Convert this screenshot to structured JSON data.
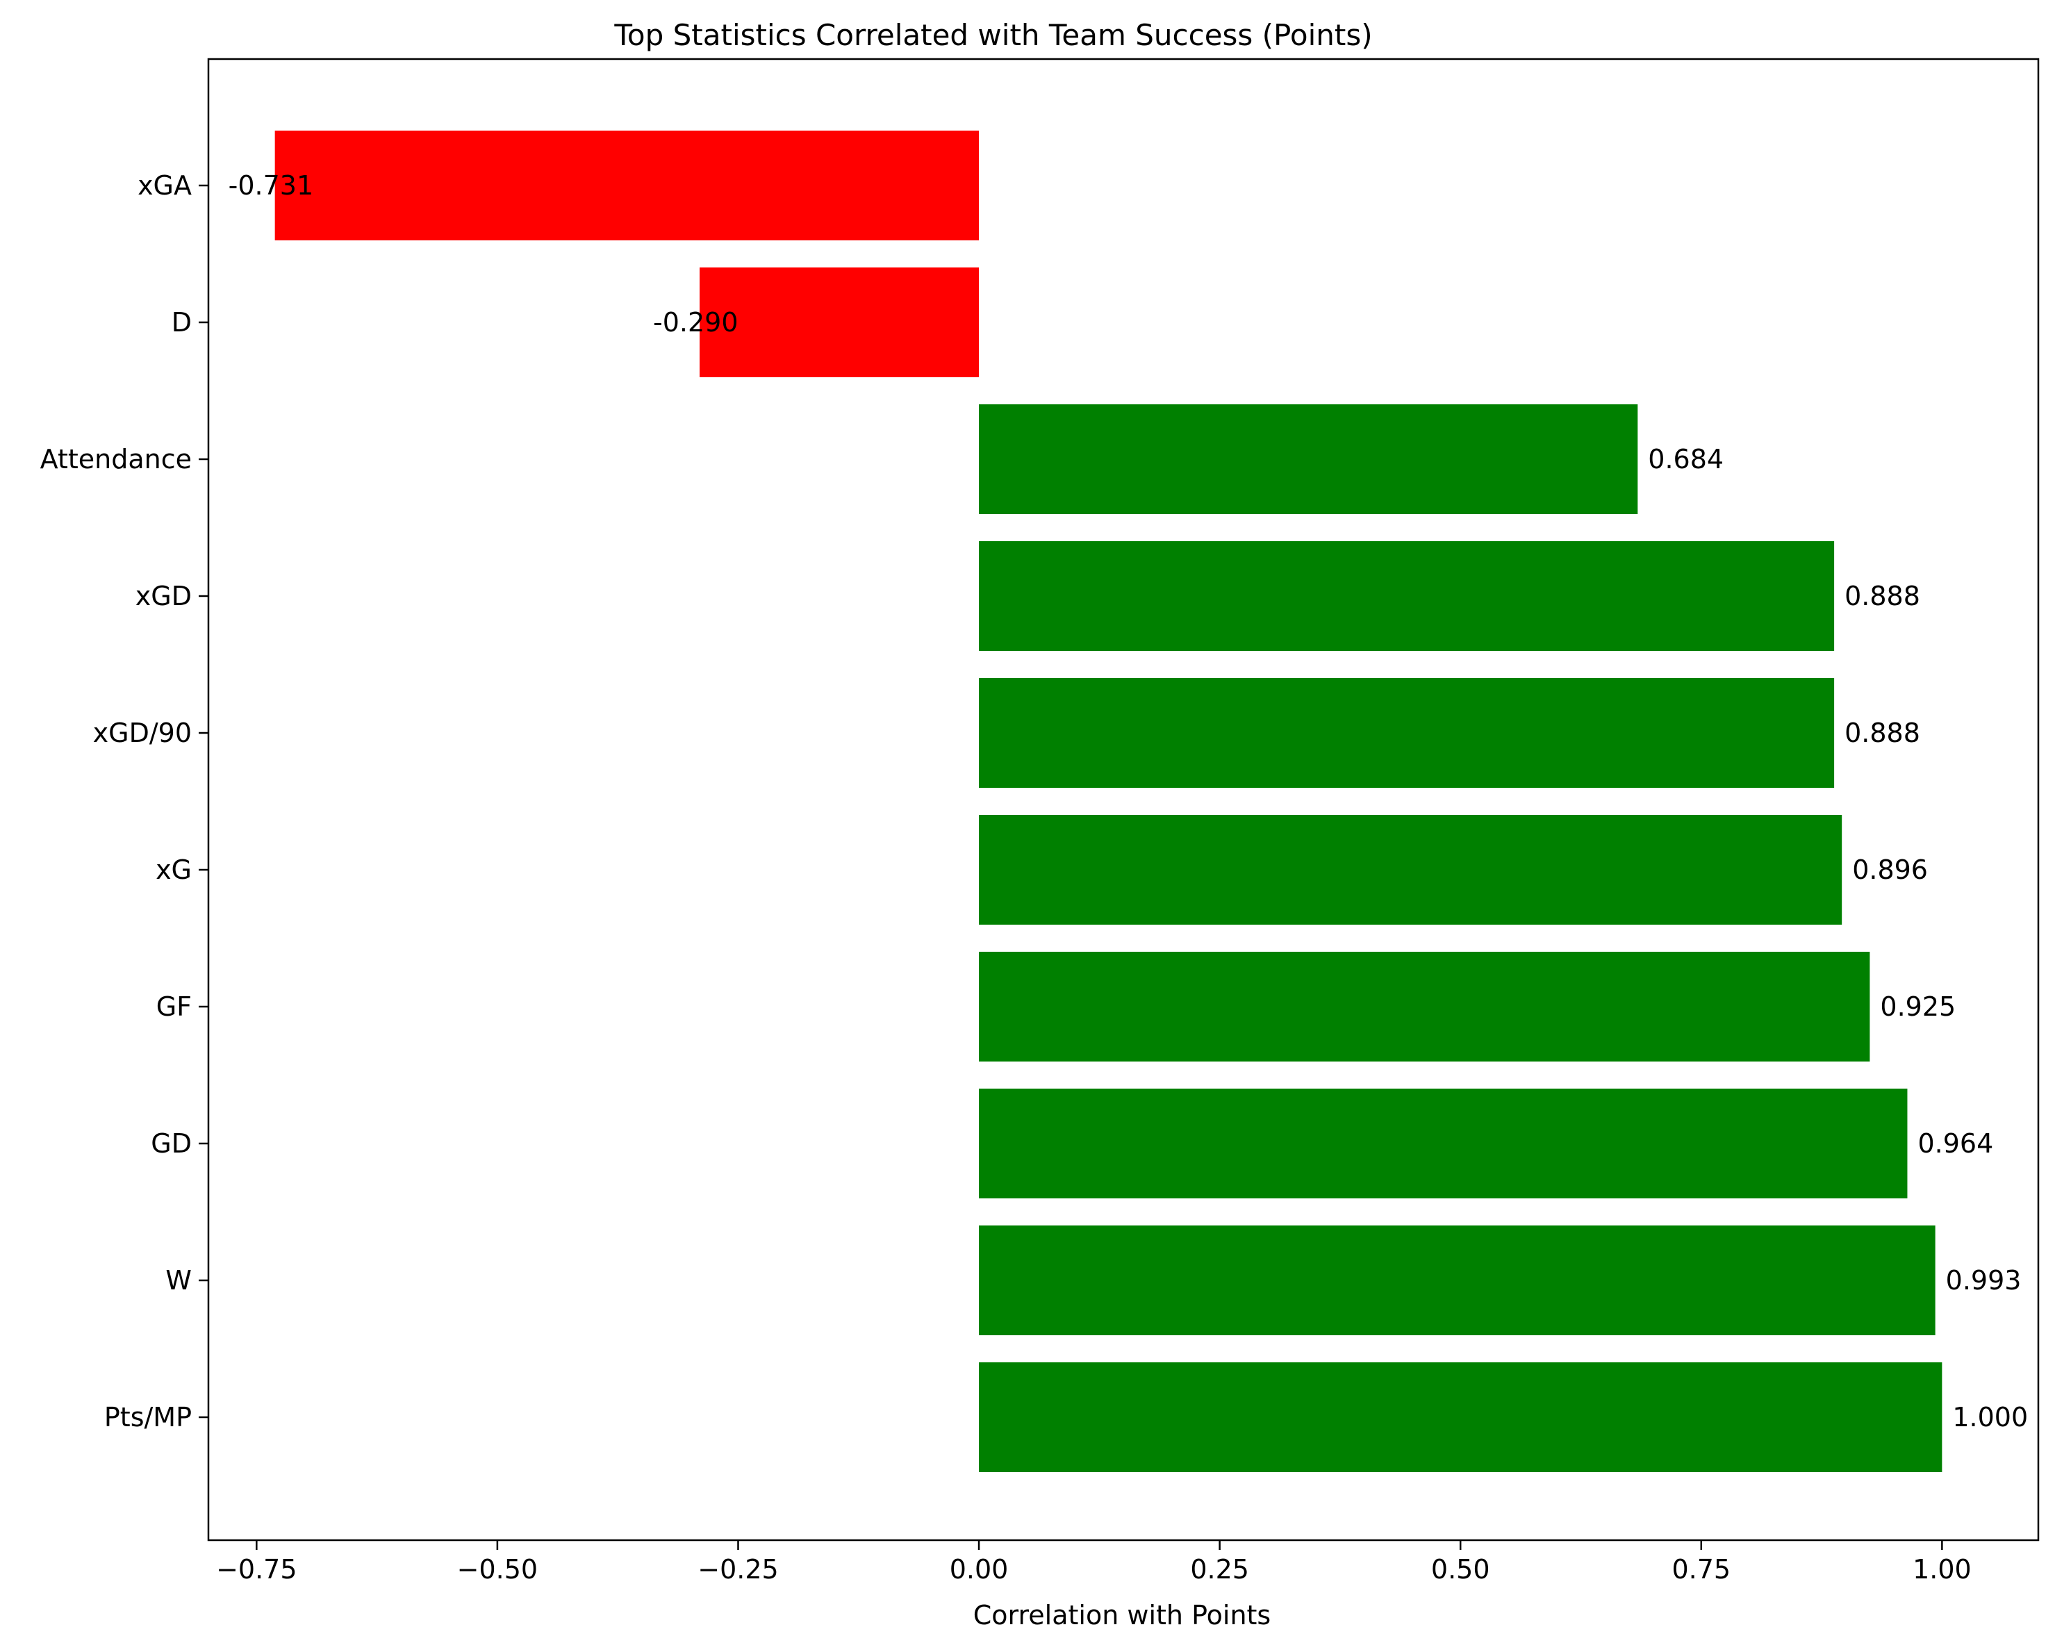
{
  "chart_data": {
    "type": "bar",
    "orientation": "horizontal",
    "title": "Top Statistics Correlated with Team Success (Points)",
    "xlabel": "Correlation with Points",
    "ylabel": "",
    "xlim": [
      -0.8,
      1.1
    ],
    "xticks": [
      -0.75,
      -0.5,
      -0.25,
      0.0,
      0.25,
      0.5,
      0.75,
      1.0
    ],
    "xtick_labels": [
      "−0.75",
      "−0.50",
      "−0.25",
      "0.00",
      "0.25",
      "0.50",
      "0.75",
      "1.00"
    ],
    "categories": [
      "xGA",
      "D",
      "Attendance",
      "xGD",
      "xGD/90",
      "xG",
      "GF",
      "GD",
      "W",
      "Pts/MP"
    ],
    "values": [
      -0.731,
      -0.29,
      0.684,
      0.888,
      0.888,
      0.896,
      0.925,
      0.964,
      0.993,
      1.0
    ],
    "value_labels": [
      "-0.731",
      "-0.290",
      "0.684",
      "0.888",
      "0.888",
      "0.896",
      "0.925",
      "0.964",
      "0.993",
      "1.000"
    ],
    "colors": {
      "positive": "#008000",
      "negative": "#ff0000"
    },
    "grid": false,
    "legend": "none"
  }
}
